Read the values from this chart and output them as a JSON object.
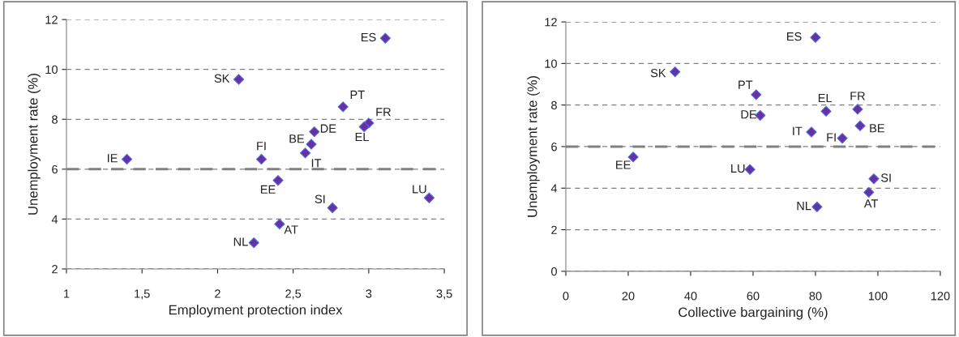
{
  "chart_data": [
    {
      "type": "scatter",
      "xlabel": "Employment protection index",
      "ylabel": "Unemployment rate (%)",
      "series": [
        {
          "color": "#6a2fa0",
          "x": [
            3.11,
            2.14,
            2.83,
            3.0,
            2.97,
            2.64,
            2.62,
            2.58,
            2.29,
            1.4,
            2.4,
            3.4,
            2.76,
            2.41,
            2.24
          ],
          "values": [
            11.25,
            9.6,
            8.5,
            7.85,
            7.7,
            7.5,
            7.0,
            6.65,
            6.4,
            6.4,
            5.55,
            4.85,
            4.45,
            3.8,
            3.05
          ]
        }
      ],
      "annotations": [
        {
          "text": "ES",
          "x": 3.11,
          "y": 11.25
        },
        {
          "text": "SK",
          "x": 2.14,
          "y": 9.6
        },
        {
          "text": "PT",
          "x": 2.83,
          "y": 8.5
        },
        {
          "text": "FR",
          "x": 3.0,
          "y": 7.85
        },
        {
          "text": "EL",
          "x": 2.97,
          "y": 7.7
        },
        {
          "text": "DE",
          "x": 2.64,
          "y": 7.5
        },
        {
          "text": "BE",
          "x": 2.62,
          "y": 7.0
        },
        {
          "text": "IT",
          "x": 2.58,
          "y": 6.65
        },
        {
          "text": "FI",
          "x": 2.29,
          "y": 6.4
        },
        {
          "text": "IE",
          "x": 1.4,
          "y": 6.4
        },
        {
          "text": "EE",
          "x": 2.4,
          "y": 5.55
        },
        {
          "text": "LU",
          "x": 3.4,
          "y": 4.85
        },
        {
          "text": "SI",
          "x": 2.76,
          "y": 4.45
        },
        {
          "text": "AT",
          "x": 2.41,
          "y": 3.8
        },
        {
          "text": "NL",
          "x": 2.24,
          "y": 3.05
        }
      ],
      "xlim": [
        1,
        3.5
      ],
      "xticks": [
        1,
        {
          "value": 1.5,
          "label": "1,5"
        },
        2,
        {
          "value": 2.5,
          "label": "2,5"
        },
        3,
        {
          "value": 3.5,
          "label": "3,5"
        }
      ],
      "ylim": [
        2,
        12
      ],
      "yticks": [
        2,
        4,
        6,
        8,
        10,
        12
      ],
      "ref_lines": [
        {
          "axis": "y",
          "value": 6,
          "color": "#808080",
          "line_style": "dashed"
        }
      ],
      "grid": "y",
      "marker": "diamond",
      "legend": false
    },
    {
      "type": "scatter",
      "xlabel": "Collective bargaining (%)",
      "ylabel": "Unemployment rate (%)",
      "series": [
        {
          "color": "#6a2fa0",
          "x": [
            80,
            35,
            61,
            62.3,
            83.4,
            93.5,
            94.3,
            78.7,
            88.6,
            21.6,
            59,
            98.7,
            97.1,
            80.5
          ],
          "values": [
            11.25,
            9.6,
            8.5,
            7.5,
            7.7,
            7.8,
            7.0,
            6.7,
            6.4,
            5.5,
            4.9,
            4.45,
            3.8,
            3.1
          ]
        }
      ],
      "annotations": [
        {
          "text": "ES",
          "x": 80,
          "y": 11.25
        },
        {
          "text": "SK",
          "x": 35,
          "y": 9.6
        },
        {
          "text": "PT",
          "x": 61,
          "y": 8.5
        },
        {
          "text": "DE",
          "x": 62.3,
          "y": 7.5
        },
        {
          "text": "EL",
          "x": 83.4,
          "y": 7.7
        },
        {
          "text": "FR",
          "x": 93.5,
          "y": 7.8
        },
        {
          "text": "BE",
          "x": 94.3,
          "y": 7.0
        },
        {
          "text": "IT",
          "x": 78.7,
          "y": 6.7
        },
        {
          "text": "FI",
          "x": 88.6,
          "y": 6.4
        },
        {
          "text": "EE",
          "x": 21.6,
          "y": 5.5
        },
        {
          "text": "LU",
          "x": 59,
          "y": 4.9
        },
        {
          "text": "SI",
          "x": 98.7,
          "y": 4.45
        },
        {
          "text": "AT",
          "x": 97.1,
          "y": 3.8
        },
        {
          "text": "NL",
          "x": 80.5,
          "y": 3.1
        }
      ],
      "xlim": [
        0,
        120
      ],
      "xticks": [
        0,
        20,
        40,
        60,
        80,
        100,
        120
      ],
      "ylim": [
        0,
        12
      ],
      "yticks": [
        0,
        2,
        4,
        6,
        8,
        10,
        12
      ],
      "ref_lines": [
        {
          "axis": "y",
          "value": 6,
          "color": "#808080",
          "line_style": "dashed"
        }
      ],
      "grid": "y",
      "marker": "diamond",
      "legend": false
    }
  ]
}
